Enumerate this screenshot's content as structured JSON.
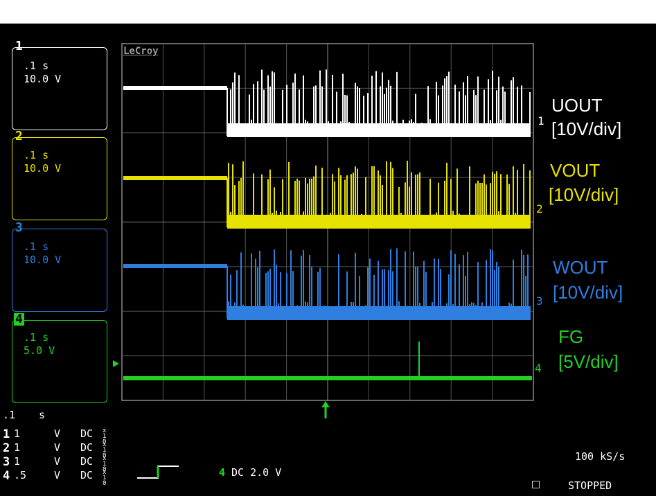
{
  "brand": "LeCroy",
  "channels": [
    {
      "num": "1",
      "time": ".1 s",
      "volts": "10.0 V",
      "color": "#ffffff"
    },
    {
      "num": "2",
      "time": ".1 s",
      "volts": "10.0 V",
      "color": "#e8e200"
    },
    {
      "num": "3",
      "time": ".1 s",
      "volts": "10.0 V",
      "color": "#2e7fe0"
    },
    {
      "num": "4",
      "time": ".1 s",
      "volts": "5.0 V",
      "color": "#22d022"
    }
  ],
  "traces": [
    {
      "marker": "1",
      "title": "UOUT",
      "scale": "[10V/div]",
      "color": "#ffffff"
    },
    {
      "marker": "2",
      "title": "VOUT",
      "scale": "[10V/div]",
      "color": "#e8e200"
    },
    {
      "marker": "3",
      "title": "WOUT",
      "scale": "[10V/div]",
      "color": "#2e7fe0"
    },
    {
      "marker": "4",
      "title": "FG",
      "scale": "[5V/div]",
      "color": "#22d022"
    }
  ],
  "timebase": {
    "value": ".1",
    "unit": "s"
  },
  "coupling": [
    {
      "num": "1",
      "scale": "1",
      "unit": "V",
      "mode": "DC",
      "probe": "x10"
    },
    {
      "num": "2",
      "scale": "1",
      "unit": "V",
      "mode": "DC",
      "probe": "x10"
    },
    {
      "num": "3",
      "scale": "1",
      "unit": "V",
      "mode": "DC",
      "probe": "x10"
    },
    {
      "num": "4",
      "scale": ".5",
      "unit": "V",
      "mode": "DC",
      "probe": "x10"
    }
  ],
  "trigger": {
    "channel": "4",
    "text": "DC 2.0 V"
  },
  "sample_rate": "100 kS/s",
  "status": "STOPPED",
  "colors": {
    "grid": "#8a8a8a",
    "background": "#000000"
  }
}
